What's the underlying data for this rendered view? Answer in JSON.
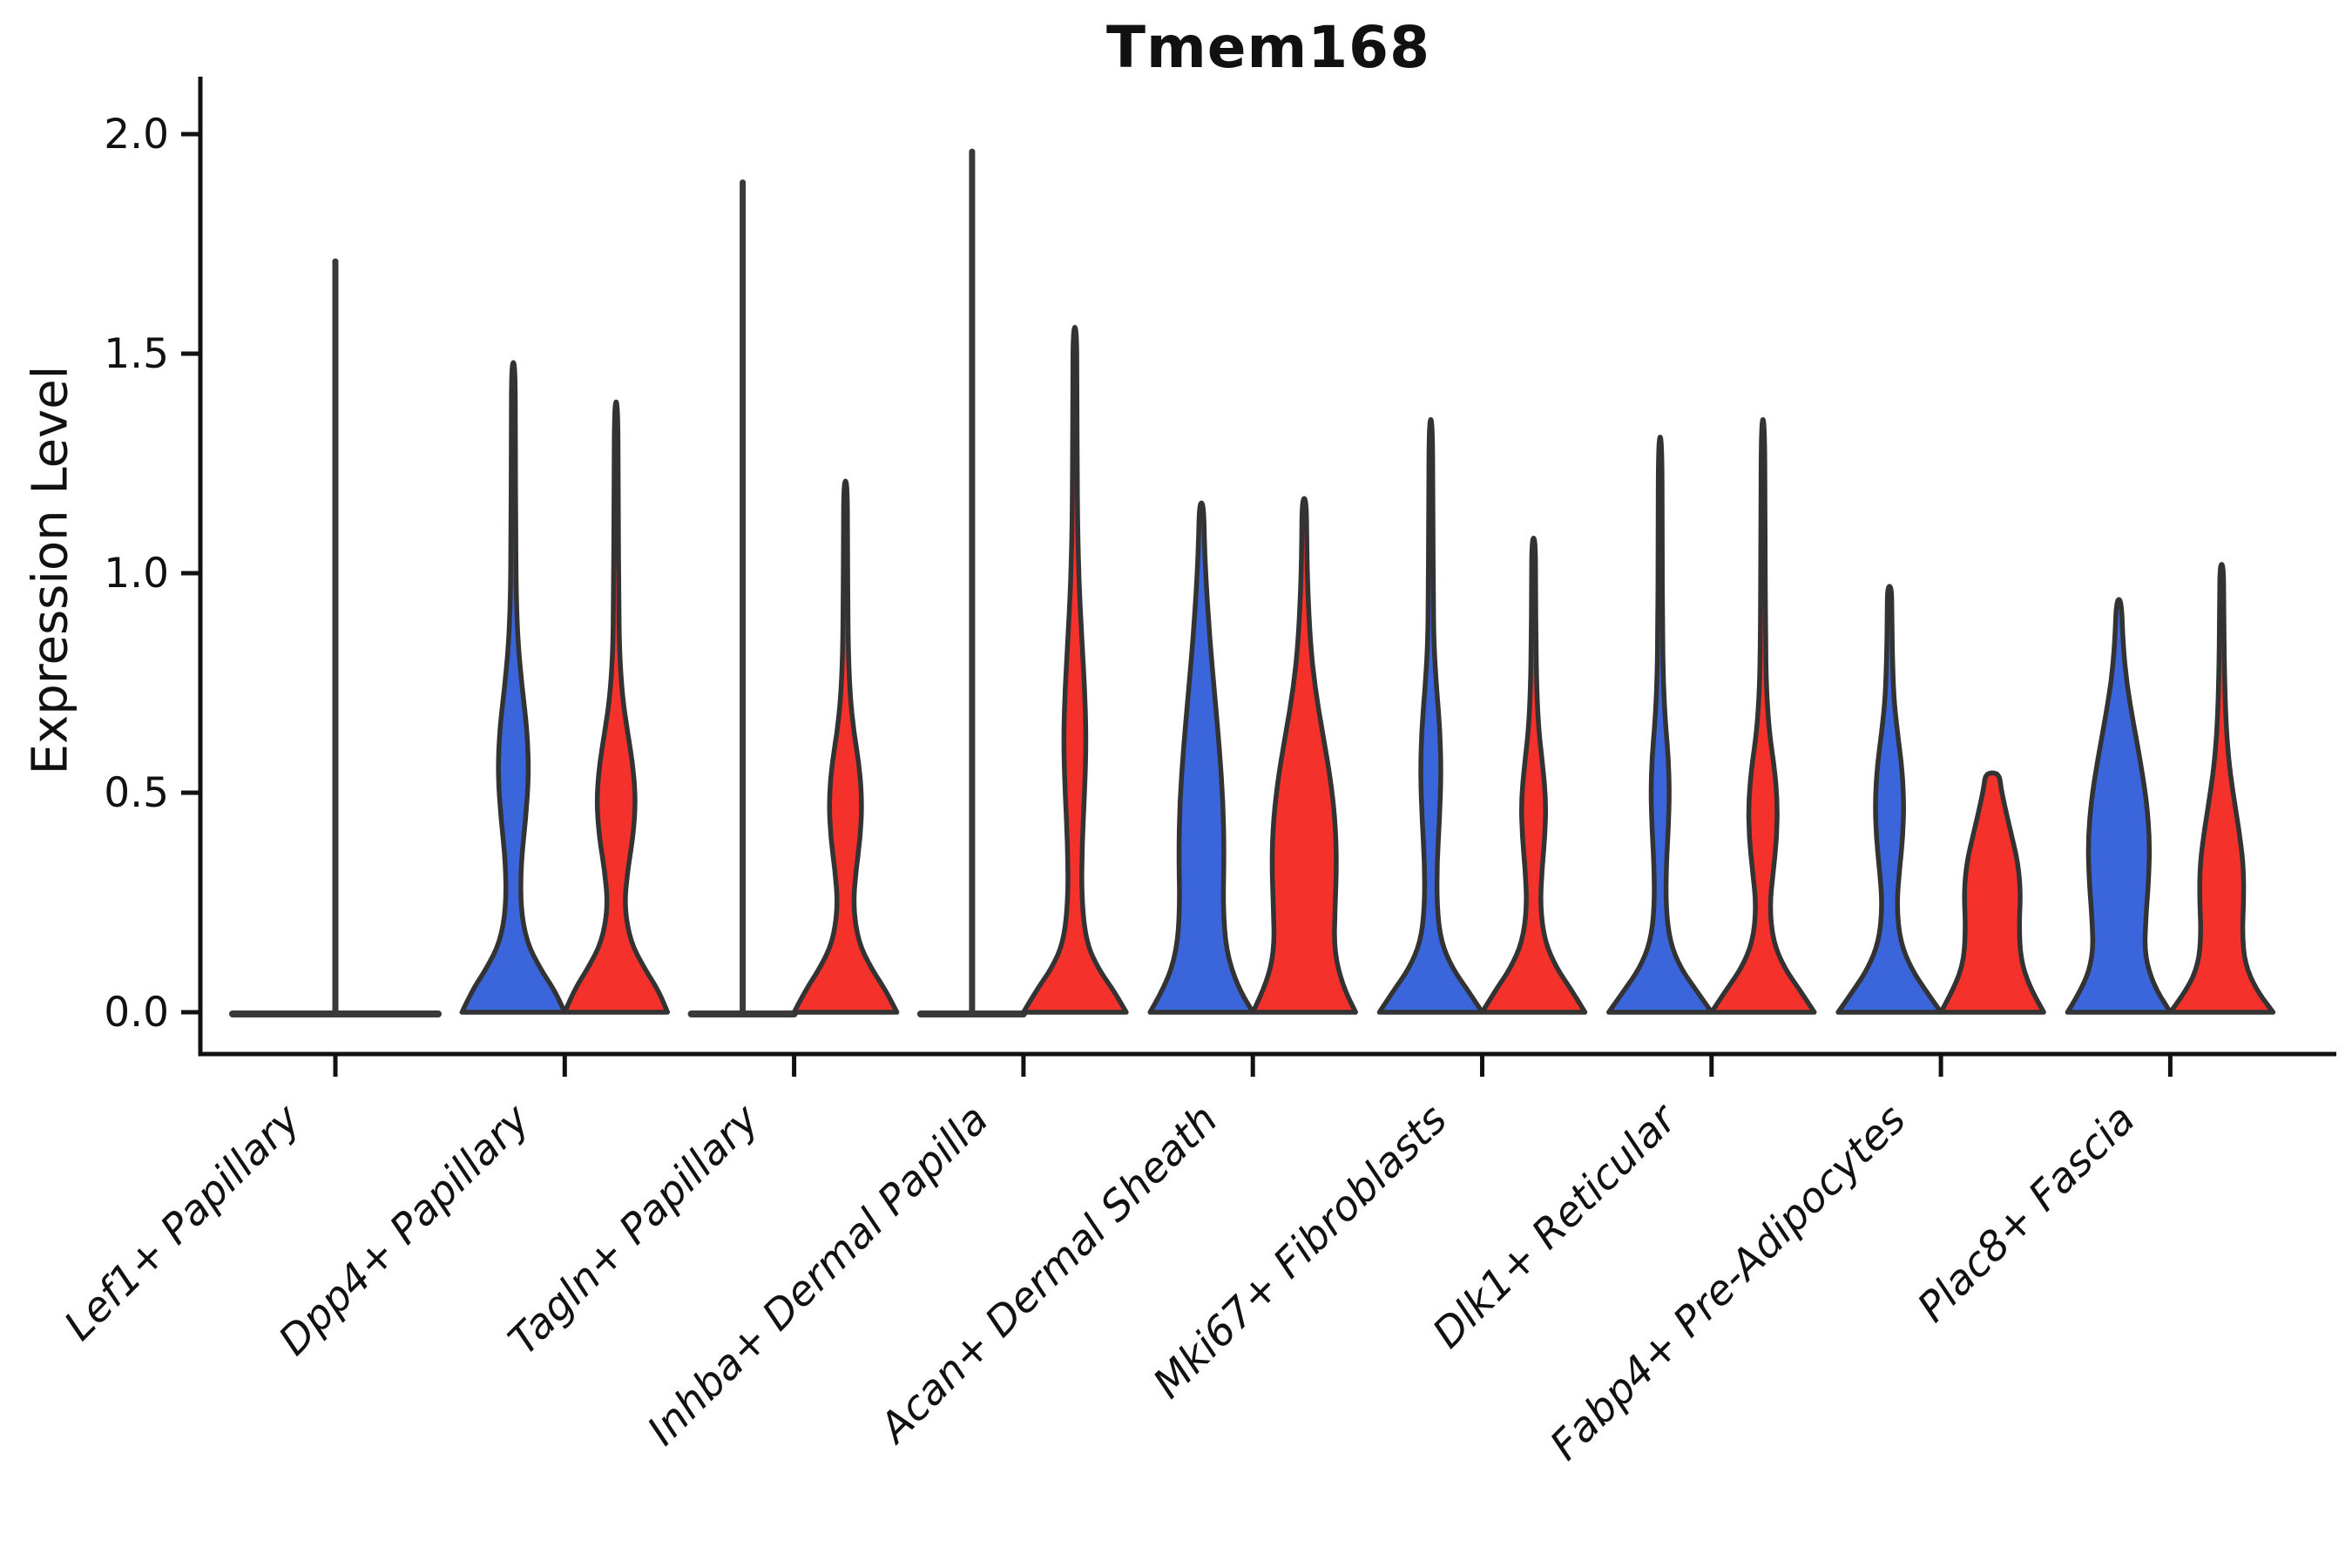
{
  "chart_data": {
    "type": "violin",
    "title": "Tmem168",
    "xlabel": "",
    "ylabel": "Expression Level",
    "yticks": [
      "0.0",
      "0.5",
      "1.0",
      "1.5",
      "2.0"
    ],
    "ytick_values": [
      0.0,
      0.5,
      1.0,
      1.5,
      2.0
    ],
    "ylim": [
      -0.1,
      2.12
    ],
    "grid": false,
    "legend": "none",
    "colors": {
      "blue": "#3B66DB",
      "red": "#F5312B",
      "outline": "#333333",
      "flat_line": "#3A3A3A",
      "axis": "#111111"
    },
    "categories": [
      "Lef1+ Papillary",
      "Dpp4+ Papillary",
      "Tagln+ Papillary",
      "Inhba+ Dermal Papilla",
      "Acan+ Dermal Sheath",
      "Mki67+ Fibroblasts",
      "Dlk1+ Reticular",
      "Fabp4+ Pre-Adipocytes",
      "Plac8+ Fascia"
    ],
    "violins": [
      {
        "category_index": 0,
        "side": "center",
        "color": "none",
        "style": "flat",
        "max": 1.71
      },
      {
        "category_index": 1,
        "side": "left",
        "color": "blue",
        "style": "kde",
        "max": 1.48,
        "profile": [
          [
            0,
            1.0
          ],
          [
            0.05,
            0.8
          ],
          [
            0.1,
            0.52
          ],
          [
            0.16,
            0.26
          ],
          [
            0.24,
            0.14
          ],
          [
            0.34,
            0.15
          ],
          [
            0.44,
            0.24
          ],
          [
            0.54,
            0.3
          ],
          [
            0.64,
            0.27
          ],
          [
            0.74,
            0.17
          ],
          [
            0.84,
            0.09
          ],
          [
            0.95,
            0.055
          ],
          [
            1.1,
            0.045
          ],
          [
            1.3,
            0.04
          ],
          [
            1.48,
            0.035
          ]
        ]
      },
      {
        "category_index": 1,
        "side": "right",
        "color": "red",
        "style": "kde",
        "max": 1.39,
        "profile": [
          [
            0,
            1.0
          ],
          [
            0.05,
            0.82
          ],
          [
            0.1,
            0.55
          ],
          [
            0.16,
            0.28
          ],
          [
            0.24,
            0.16
          ],
          [
            0.32,
            0.22
          ],
          [
            0.4,
            0.33
          ],
          [
            0.48,
            0.38
          ],
          [
            0.56,
            0.33
          ],
          [
            0.64,
            0.22
          ],
          [
            0.72,
            0.12
          ],
          [
            0.82,
            0.065
          ],
          [
            0.95,
            0.05
          ],
          [
            1.15,
            0.04
          ],
          [
            1.39,
            0.035
          ]
        ]
      },
      {
        "category_index": 2,
        "side": "left",
        "color": "none",
        "style": "flat",
        "max": 1.89
      },
      {
        "category_index": 2,
        "side": "right",
        "color": "red",
        "style": "kde",
        "max": 1.21,
        "profile": [
          [
            0,
            1.0
          ],
          [
            0.05,
            0.78
          ],
          [
            0.1,
            0.5
          ],
          [
            0.16,
            0.25
          ],
          [
            0.24,
            0.15
          ],
          [
            0.32,
            0.2
          ],
          [
            0.4,
            0.29
          ],
          [
            0.48,
            0.32
          ],
          [
            0.56,
            0.27
          ],
          [
            0.64,
            0.16
          ],
          [
            0.72,
            0.09
          ],
          [
            0.82,
            0.055
          ],
          [
            0.95,
            0.045
          ],
          [
            1.05,
            0.04
          ],
          [
            1.21,
            0.035
          ]
        ]
      },
      {
        "category_index": 3,
        "side": "left",
        "color": "none",
        "style": "flat",
        "max": 1.96
      },
      {
        "category_index": 3,
        "side": "right",
        "color": "red",
        "style": "kde",
        "max": 1.56,
        "profile": [
          [
            0,
            1.0
          ],
          [
            0.05,
            0.75
          ],
          [
            0.1,
            0.45
          ],
          [
            0.16,
            0.22
          ],
          [
            0.26,
            0.13
          ],
          [
            0.38,
            0.14
          ],
          [
            0.5,
            0.19
          ],
          [
            0.62,
            0.22
          ],
          [
            0.74,
            0.19
          ],
          [
            0.86,
            0.13
          ],
          [
            0.98,
            0.08
          ],
          [
            1.1,
            0.055
          ],
          [
            1.25,
            0.045
          ],
          [
            1.4,
            0.04
          ],
          [
            1.56,
            0.035
          ]
        ]
      },
      {
        "category_index": 4,
        "side": "left",
        "color": "blue",
        "style": "kde",
        "max": 1.16,
        "profile": [
          [
            0,
            1.0
          ],
          [
            0.06,
            0.7
          ],
          [
            0.14,
            0.48
          ],
          [
            0.24,
            0.42
          ],
          [
            0.36,
            0.44
          ],
          [
            0.48,
            0.42
          ],
          [
            0.6,
            0.35
          ],
          [
            0.72,
            0.26
          ],
          [
            0.84,
            0.17
          ],
          [
            0.96,
            0.1
          ],
          [
            1.06,
            0.06
          ],
          [
            1.16,
            0.04
          ]
        ]
      },
      {
        "category_index": 4,
        "side": "right",
        "color": "red",
        "style": "kde",
        "max": 1.17,
        "profile": [
          [
            0,
            1.0
          ],
          [
            0.06,
            0.75
          ],
          [
            0.14,
            0.58
          ],
          [
            0.24,
            0.6
          ],
          [
            0.34,
            0.63
          ],
          [
            0.44,
            0.6
          ],
          [
            0.54,
            0.5
          ],
          [
            0.64,
            0.35
          ],
          [
            0.74,
            0.21
          ],
          [
            0.84,
            0.12
          ],
          [
            0.96,
            0.07
          ],
          [
            1.06,
            0.05
          ],
          [
            1.17,
            0.04
          ]
        ]
      },
      {
        "category_index": 5,
        "side": "left",
        "color": "blue",
        "style": "kde",
        "max": 1.35,
        "profile": [
          [
            0,
            1.0
          ],
          [
            0.05,
            0.72
          ],
          [
            0.1,
            0.42
          ],
          [
            0.16,
            0.2
          ],
          [
            0.24,
            0.12
          ],
          [
            0.34,
            0.12
          ],
          [
            0.44,
            0.17
          ],
          [
            0.54,
            0.2
          ],
          [
            0.64,
            0.18
          ],
          [
            0.74,
            0.11
          ],
          [
            0.84,
            0.06
          ],
          [
            0.95,
            0.05
          ],
          [
            1.1,
            0.04
          ],
          [
            1.35,
            0.035
          ]
        ]
      },
      {
        "category_index": 5,
        "side": "right",
        "color": "red",
        "style": "kde",
        "max": 1.08,
        "profile": [
          [
            0,
            1.0
          ],
          [
            0.05,
            0.74
          ],
          [
            0.1,
            0.45
          ],
          [
            0.16,
            0.22
          ],
          [
            0.24,
            0.13
          ],
          [
            0.32,
            0.16
          ],
          [
            0.4,
            0.22
          ],
          [
            0.48,
            0.24
          ],
          [
            0.56,
            0.18
          ],
          [
            0.64,
            0.1
          ],
          [
            0.74,
            0.06
          ],
          [
            0.85,
            0.045
          ],
          [
            0.95,
            0.04
          ],
          [
            1.08,
            0.035
          ]
        ]
      },
      {
        "category_index": 6,
        "side": "left",
        "color": "blue",
        "style": "kde",
        "max": 1.31,
        "profile": [
          [
            0,
            1.0
          ],
          [
            0.05,
            0.7
          ],
          [
            0.1,
            0.4
          ],
          [
            0.16,
            0.19
          ],
          [
            0.24,
            0.11
          ],
          [
            0.34,
            0.12
          ],
          [
            0.42,
            0.16
          ],
          [
            0.5,
            0.18
          ],
          [
            0.58,
            0.16
          ],
          [
            0.66,
            0.1
          ],
          [
            0.76,
            0.06
          ],
          [
            0.88,
            0.045
          ],
          [
            1.05,
            0.04
          ],
          [
            1.31,
            0.035
          ]
        ]
      },
      {
        "category_index": 6,
        "side": "right",
        "color": "red",
        "style": "kde",
        "max": 1.35,
        "profile": [
          [
            0,
            1.0
          ],
          [
            0.05,
            0.72
          ],
          [
            0.1,
            0.42
          ],
          [
            0.16,
            0.2
          ],
          [
            0.24,
            0.13
          ],
          [
            0.32,
            0.2
          ],
          [
            0.4,
            0.27
          ],
          [
            0.48,
            0.28
          ],
          [
            0.56,
            0.22
          ],
          [
            0.64,
            0.12
          ],
          [
            0.74,
            0.065
          ],
          [
            0.86,
            0.05
          ],
          [
            1.05,
            0.04
          ],
          [
            1.35,
            0.035
          ]
        ]
      },
      {
        "category_index": 7,
        "side": "left",
        "color": "blue",
        "style": "kde",
        "max": 0.97,
        "profile": [
          [
            0,
            1.0
          ],
          [
            0.05,
            0.7
          ],
          [
            0.1,
            0.42
          ],
          [
            0.16,
            0.21
          ],
          [
            0.24,
            0.14
          ],
          [
            0.32,
            0.19
          ],
          [
            0.4,
            0.26
          ],
          [
            0.48,
            0.28
          ],
          [
            0.56,
            0.24
          ],
          [
            0.64,
            0.15
          ],
          [
            0.72,
            0.08
          ],
          [
            0.82,
            0.055
          ],
          [
            0.9,
            0.045
          ],
          [
            0.97,
            0.04
          ]
        ]
      },
      {
        "category_index": 7,
        "side": "right",
        "color": "red",
        "style": "kde",
        "max": 0.545,
        "blunt_top": true,
        "profile": [
          [
            0,
            1.0
          ],
          [
            0.06,
            0.72
          ],
          [
            0.12,
            0.55
          ],
          [
            0.2,
            0.52
          ],
          [
            0.27,
            0.55
          ],
          [
            0.34,
            0.5
          ],
          [
            0.41,
            0.36
          ],
          [
            0.47,
            0.24
          ],
          [
            0.51,
            0.17
          ],
          [
            0.545,
            0.13
          ]
        ]
      },
      {
        "category_index": 8,
        "side": "left",
        "color": "blue",
        "style": "kde",
        "max": 0.94,
        "profile": [
          [
            0,
            1.0
          ],
          [
            0.06,
            0.68
          ],
          [
            0.13,
            0.5
          ],
          [
            0.21,
            0.52
          ],
          [
            0.3,
            0.58
          ],
          [
            0.39,
            0.6
          ],
          [
            0.48,
            0.54
          ],
          [
            0.57,
            0.42
          ],
          [
            0.66,
            0.28
          ],
          [
            0.75,
            0.15
          ],
          [
            0.84,
            0.08
          ],
          [
            0.94,
            0.05
          ]
        ]
      },
      {
        "category_index": 8,
        "side": "right",
        "color": "red",
        "style": "kde",
        "max": 1.02,
        "profile": [
          [
            0,
            1.0
          ],
          [
            0.05,
            0.68
          ],
          [
            0.11,
            0.45
          ],
          [
            0.18,
            0.4
          ],
          [
            0.26,
            0.43
          ],
          [
            0.34,
            0.42
          ],
          [
            0.42,
            0.33
          ],
          [
            0.5,
            0.22
          ],
          [
            0.58,
            0.13
          ],
          [
            0.68,
            0.075
          ],
          [
            0.8,
            0.05
          ],
          [
            0.92,
            0.04
          ],
          [
            1.02,
            0.035
          ]
        ]
      }
    ]
  }
}
